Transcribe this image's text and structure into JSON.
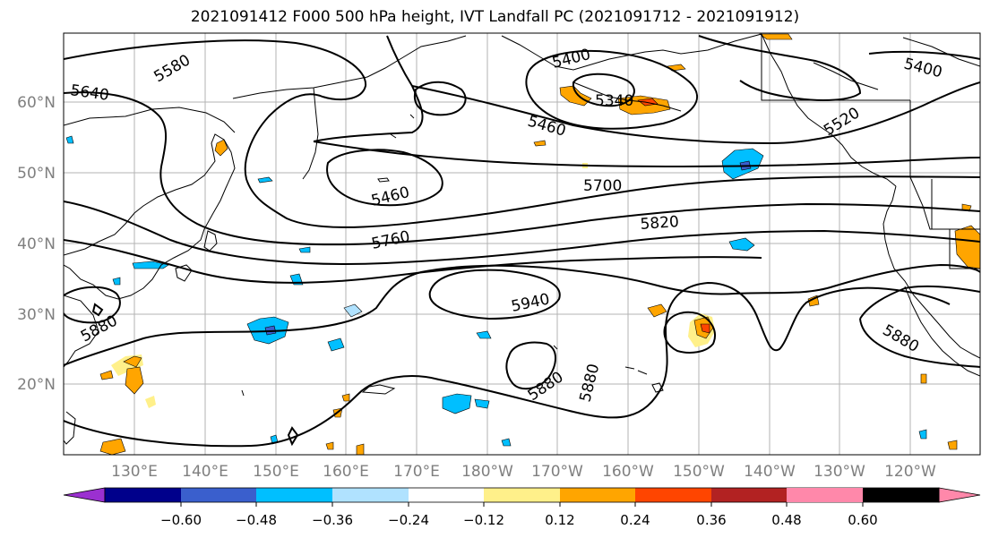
{
  "title": "2021091412 F000 500 hPa height, IVT Landfall PC (2021091712 - 2021091912)",
  "map": {
    "lat_labels": [
      "60°N",
      "50°N",
      "40°N",
      "30°N",
      "20°N"
    ],
    "lon_labels": [
      "130°E",
      "140°E",
      "150°E",
      "160°E",
      "170°E",
      "180°W",
      "170°W",
      "160°W",
      "150°W",
      "140°W",
      "130°W",
      "120°W"
    ],
    "contour_labels": [
      "5580",
      "5640",
      "5400",
      "5340",
      "5460",
      "5400",
      "5520",
      "5460",
      "5700",
      "5760",
      "5820",
      "5880",
      "5940",
      "5880",
      "5880",
      "5880"
    ]
  },
  "colorbar": {
    "tick_labels": [
      "−0.60",
      "−0.48",
      "−0.36",
      "−0.24",
      "−0.12",
      "0.12",
      "0.24",
      "0.36",
      "0.48",
      "0.60"
    ],
    "colors": [
      "#9b30d0",
      "#00008b",
      "#3a5fcd",
      "#00bfff",
      "#b0e2ff",
      "#ffffff",
      "#fff08a",
      "#ffa500",
      "#ff4500",
      "#b22222",
      "#ff88aa"
    ]
  }
}
